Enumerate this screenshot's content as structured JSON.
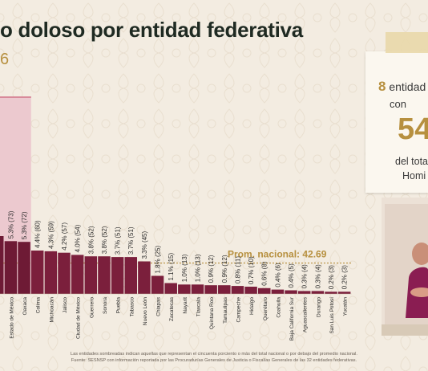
{
  "title": "o doloso por entidad federativa",
  "subtitle": "6",
  "panel": {
    "count": "8",
    "line1": " entidad",
    "line2": "con",
    "big": "54",
    "line4": "del tota",
    "line5": "Homi"
  },
  "note": {
    "line1": "Las entidades sombreadas indican aquellas que representan el cincuenta porciento o más del total nacional o por debajo del promedio nacional.",
    "line2": "Fuente: SESNSP con información reportada por las Procuradurías Generales de Justicia o Fiscalías Generales de las 32 entidades federativas."
  },
  "colors": {
    "bar": "#7b1f3c",
    "highlight": "#ecc9cf",
    "average": "#b7903f",
    "title": "#1f2a22"
  },
  "chart_data": {
    "type": "bar",
    "average_label": "Prom. nacional: 42.69",
    "average_value": 42.69,
    "ylim": [
      0,
      100
    ],
    "bars": [
      {
        "category": "",
        "value": 80,
        "label": ""
      },
      {
        "category": "Estado de México",
        "value": 73,
        "label": "5.3% (73)"
      },
      {
        "category": "Oaxaca",
        "value": 72,
        "label": "5.3% (72)"
      },
      {
        "category": "Colima",
        "value": 60,
        "label": "4.4% (60)"
      },
      {
        "category": "Michoacán",
        "value": 59,
        "label": "4.3% (59)"
      },
      {
        "category": "Jalisco",
        "value": 57,
        "label": "4.2% (57)"
      },
      {
        "category": "Ciudad de México",
        "value": 54,
        "label": "4.0% (54)"
      },
      {
        "category": "Guerrero",
        "value": 52,
        "label": "3.8% (52)"
      },
      {
        "category": "Sonora",
        "value": 52,
        "label": "3.8% (52)"
      },
      {
        "category": "Puebla",
        "value": 51,
        "label": "3.7% (51)"
      },
      {
        "category": "Tabasco",
        "value": 51,
        "label": "3.7% (51)"
      },
      {
        "category": "Nuevo León",
        "value": 45,
        "label": "3.3% (45)"
      },
      {
        "category": "Chiapas",
        "value": 25,
        "label": "1.8% (25)"
      },
      {
        "category": "Zacatecas",
        "value": 15,
        "label": "1.1% (15)"
      },
      {
        "category": "Nayarit",
        "value": 13,
        "label": "1.0% (13)"
      },
      {
        "category": "Tlaxcala",
        "value": 13,
        "label": "1.0% (13)"
      },
      {
        "category": "Quintana Roo",
        "value": 12,
        "label": "0.9% (12)"
      },
      {
        "category": "Tamaulipas",
        "value": 12,
        "label": "0.9% (12)"
      },
      {
        "category": "Campeche",
        "value": 11,
        "label": "0.8% (11)"
      },
      {
        "category": "Hidalgo",
        "value": 10,
        "label": "0.7% (10)"
      },
      {
        "category": "Querétaro",
        "value": 8,
        "label": "0.6% (8)"
      },
      {
        "category": "Coahuila",
        "value": 6,
        "label": "0.4% (6)"
      },
      {
        "category": "Baja California Sur",
        "value": 5,
        "label": "0.4% (5)"
      },
      {
        "category": "Aguascalientes",
        "value": 4,
        "label": "0.3% (4)"
      },
      {
        "category": "Durango",
        "value": 4,
        "label": "0.3% (4)"
      },
      {
        "category": "San Luis Potosí",
        "value": 3,
        "label": "0.2% (3)"
      },
      {
        "category": "Yucatán",
        "value": 3,
        "label": "0.2% (3)"
      }
    ]
  }
}
